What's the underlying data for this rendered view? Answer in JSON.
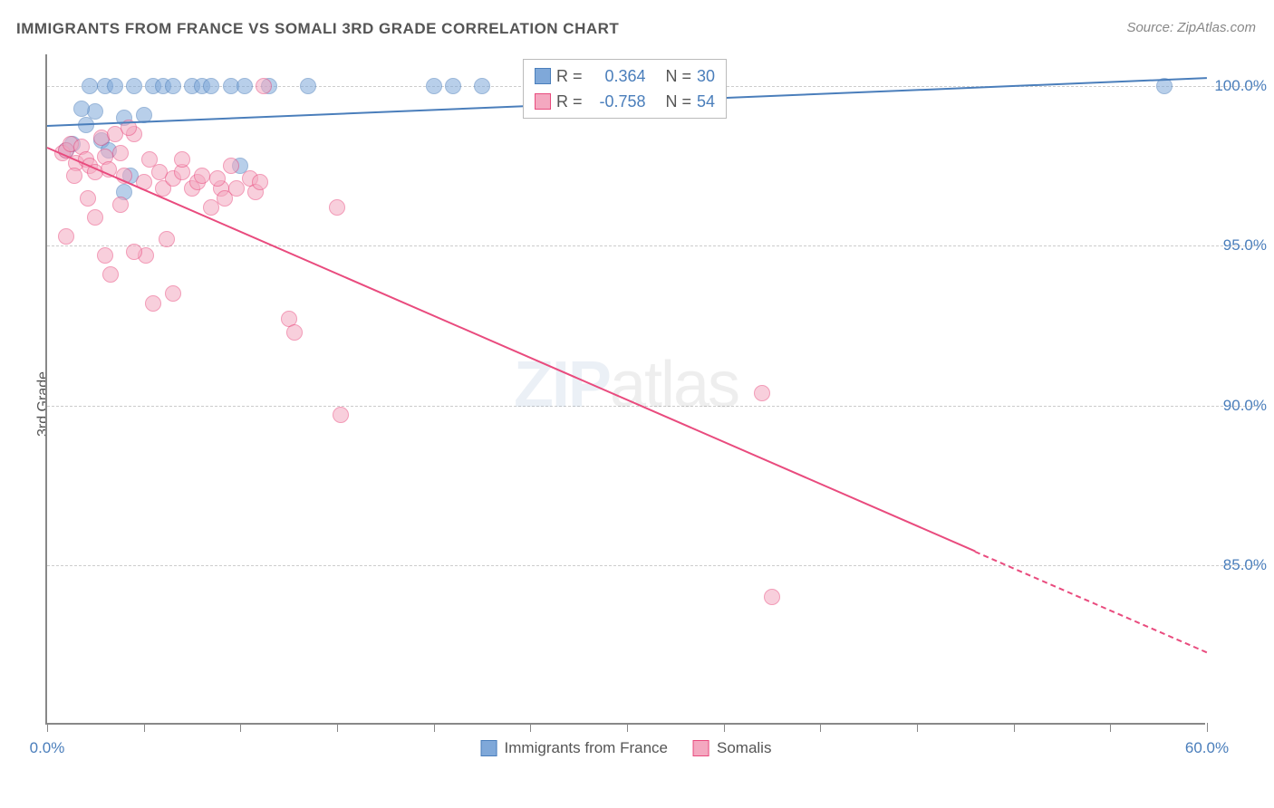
{
  "title": "IMMIGRANTS FROM FRANCE VS SOMALI 3RD GRADE CORRELATION CHART",
  "source": "Source: ZipAtlas.com",
  "ylabel": "3rd Grade",
  "watermark_bold": "ZIP",
  "watermark_rest": "atlas",
  "chart": {
    "type": "scatter",
    "background_color": "#ffffff",
    "grid_color": "#cccccc",
    "grid_dash": true,
    "axis_color": "#888888",
    "xlim": [
      0,
      60
    ],
    "ylim": [
      80,
      101
    ],
    "xtick_positions": [
      0,
      5,
      10,
      15,
      20,
      25,
      30,
      35,
      40,
      45,
      50,
      55,
      60
    ],
    "xtick_labels": {
      "0": "0.0%",
      "60": "60.0%"
    },
    "ytick_positions": [
      85,
      90,
      95,
      100
    ],
    "ytick_labels": {
      "85": "85.0%",
      "90": "90.0%",
      "95": "95.0%",
      "100": "100.0%"
    },
    "label_color": "#4a7ebb",
    "label_fontsize": 17,
    "title_color": "#555555",
    "title_fontsize": 17,
    "marker_radius": 9,
    "marker_opacity": 0.55,
    "series": [
      {
        "name": "Immigrants from France",
        "color": "#7fa8d9",
        "stroke": "#4a7ebb",
        "R": "0.364",
        "N": "30",
        "trend": {
          "x1": 0,
          "y1": 98.8,
          "x2": 60,
          "y2": 100.3,
          "dash_after_x": null
        },
        "points": [
          [
            1.0,
            98.0
          ],
          [
            1.3,
            98.2
          ],
          [
            2.0,
            98.8
          ],
          [
            2.5,
            99.2
          ],
          [
            3.0,
            100.0
          ],
          [
            3.5,
            100.0
          ],
          [
            4.0,
            99.0
          ],
          [
            4.5,
            100.0
          ],
          [
            5.0,
            99.1
          ],
          [
            5.5,
            100.0
          ],
          [
            1.8,
            99.3
          ],
          [
            2.8,
            98.3
          ],
          [
            3.2,
            98.0
          ],
          [
            2.2,
            100.0
          ],
          [
            6.0,
            100.0
          ],
          [
            6.5,
            100.0
          ],
          [
            7.5,
            100.0
          ],
          [
            8.0,
            100.0
          ],
          [
            8.5,
            100.0
          ],
          [
            9.5,
            100.0
          ],
          [
            10.2,
            100.0
          ],
          [
            11.5,
            100.0
          ],
          [
            13.5,
            100.0
          ],
          [
            10.0,
            97.5
          ],
          [
            4.3,
            97.2
          ],
          [
            4.0,
            96.7
          ],
          [
            20.0,
            100.0
          ],
          [
            21.0,
            100.0
          ],
          [
            22.5,
            100.0
          ],
          [
            57.8,
            100.0
          ]
        ]
      },
      {
        "name": "Somalis",
        "color": "#f4a8c0",
        "stroke": "#e94b7e",
        "R": "-0.758",
        "N": "54",
        "trend": {
          "x1": 0,
          "y1": 98.1,
          "x2": 60,
          "y2": 82.3,
          "dash_after_x": 48
        },
        "points": [
          [
            0.8,
            97.9
          ],
          [
            1.0,
            98.0
          ],
          [
            1.2,
            98.2
          ],
          [
            1.5,
            97.6
          ],
          [
            1.8,
            98.1
          ],
          [
            2.0,
            97.7
          ],
          [
            2.2,
            97.5
          ],
          [
            2.5,
            97.3
          ],
          [
            2.8,
            98.4
          ],
          [
            3.0,
            97.8
          ],
          [
            3.2,
            97.4
          ],
          [
            3.5,
            98.5
          ],
          [
            3.8,
            97.9
          ],
          [
            4.0,
            97.2
          ],
          [
            4.5,
            98.5
          ],
          [
            5.0,
            97.0
          ],
          [
            1.0,
            95.3
          ],
          [
            5.1,
            94.7
          ],
          [
            5.3,
            97.7
          ],
          [
            5.5,
            93.2
          ],
          [
            5.8,
            97.3
          ],
          [
            6.0,
            96.8
          ],
          [
            6.5,
            97.1
          ],
          [
            7.0,
            97.3
          ],
          [
            2.5,
            95.9
          ],
          [
            3.0,
            94.7
          ],
          [
            3.3,
            94.1
          ],
          [
            3.8,
            96.3
          ],
          [
            7.5,
            96.8
          ],
          [
            7.8,
            97.0
          ],
          [
            8.0,
            97.2
          ],
          [
            8.5,
            96.2
          ],
          [
            9.0,
            96.8
          ],
          [
            9.5,
            97.5
          ],
          [
            9.8,
            96.8
          ],
          [
            10.5,
            97.1
          ],
          [
            10.8,
            96.7
          ],
          [
            11.0,
            97.0
          ],
          [
            6.2,
            95.2
          ],
          [
            6.5,
            93.5
          ],
          [
            12.5,
            92.7
          ],
          [
            12.8,
            92.3
          ],
          [
            7.0,
            97.7
          ],
          [
            8.8,
            97.1
          ],
          [
            9.2,
            96.5
          ],
          [
            15.0,
            96.2
          ],
          [
            4.5,
            94.8
          ],
          [
            11.2,
            100.0
          ],
          [
            15.2,
            89.7
          ],
          [
            37.0,
            90.4
          ],
          [
            37.5,
            84.0
          ],
          [
            1.4,
            97.2
          ],
          [
            2.1,
            96.5
          ],
          [
            4.2,
            98.7
          ]
        ]
      }
    ]
  },
  "legend_top": {
    "r_label": "R =",
    "n_label": "N ="
  },
  "legend_bottom": [
    {
      "label": "Immigrants from France",
      "color": "#7fa8d9",
      "stroke": "#4a7ebb"
    },
    {
      "label": "Somalis",
      "color": "#f4a8c0",
      "stroke": "#e94b7e"
    }
  ]
}
